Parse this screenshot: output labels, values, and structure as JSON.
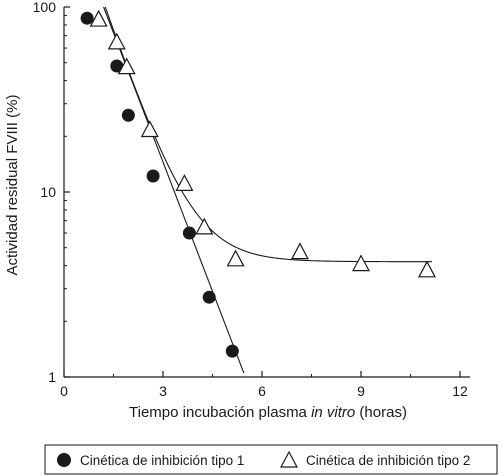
{
  "chart_data": {
    "type": "scatter",
    "x_axis": {
      "label_prefix": "Tiempo incubación plasma ",
      "label_italic": "in vitro",
      "label_suffix": " (horas)",
      "range": [
        0,
        12
      ],
      "ticks": [
        "0",
        "3",
        "6",
        "9",
        "12"
      ],
      "tick_values": [
        0,
        3,
        6,
        9,
        12
      ]
    },
    "y_axis": {
      "label": "Actividad residual FVIII (%)",
      "scale": "log",
      "range": [
        1,
        100
      ],
      "ticks": [
        "1",
        "10",
        "100"
      ],
      "tick_values": [
        1,
        10,
        100
      ]
    },
    "grid": false,
    "legend_position": "bottom",
    "series": [
      {
        "name": "Cinética de inhibición tipo 1",
        "marker": "filled-circle",
        "points": [
          [
            0.7,
            87
          ],
          [
            1.6,
            48
          ],
          [
            1.95,
            26
          ],
          [
            2.7,
            12.2
          ],
          [
            3.8,
            6.0
          ],
          [
            4.4,
            2.7
          ],
          [
            5.1,
            1.38
          ]
        ],
        "fit": [
          [
            1.2,
            100
          ],
          [
            5.45,
            1.05
          ]
        ]
      },
      {
        "name": "Cinética de inhibición tipo 2",
        "marker": "open-triangle",
        "points": [
          [
            1.05,
            85
          ],
          [
            1.6,
            64
          ],
          [
            1.9,
            47
          ],
          [
            2.6,
            21.5
          ],
          [
            3.65,
            11.0
          ],
          [
            4.25,
            6.4
          ],
          [
            5.2,
            4.3
          ],
          [
            7.15,
            4.7
          ],
          [
            9.0,
            4.05
          ],
          [
            11.0,
            3.75
          ]
        ],
        "fit_plateau": 4.2,
        "fit_rate": 1.2,
        "fit_start_x": 1.25
      }
    ]
  }
}
